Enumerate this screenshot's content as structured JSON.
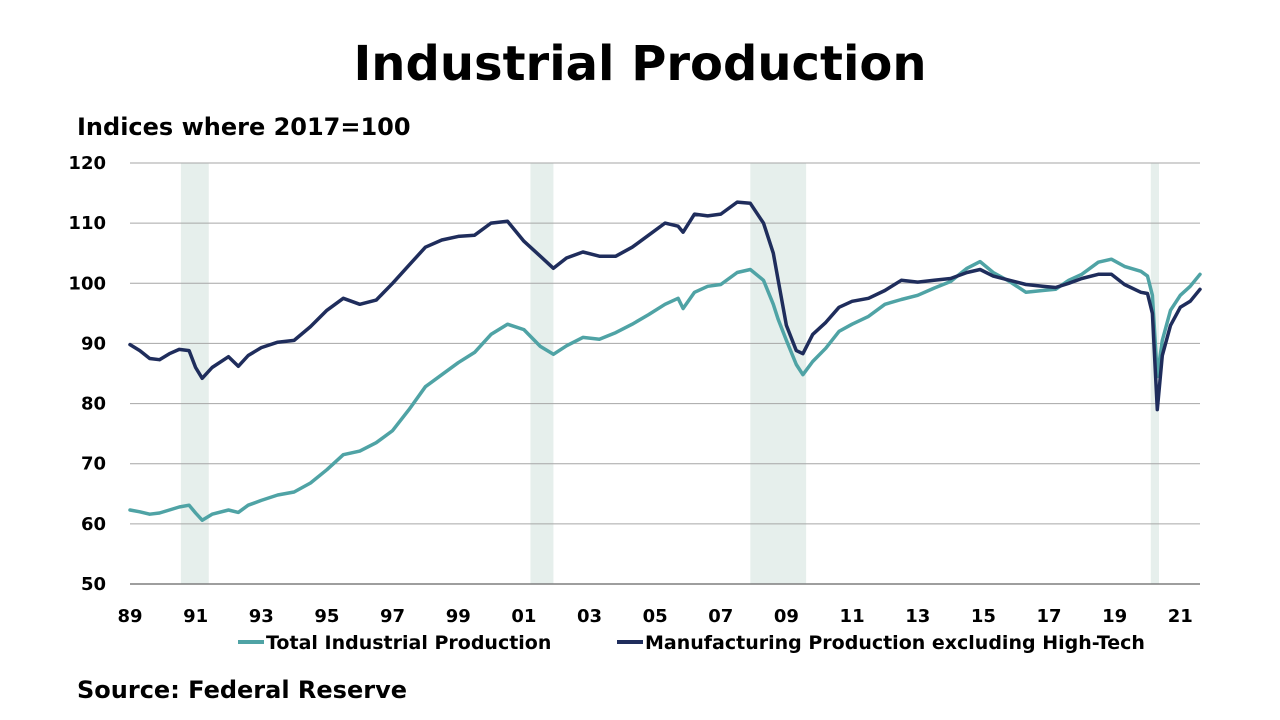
{
  "chart_data": {
    "type": "line",
    "title": "Industrial Production",
    "ylabel": "Indices where 2017=100",
    "source": "Source: Federal Reserve",
    "ylim": [
      50,
      120
    ],
    "xlim": [
      1989.0,
      2021.6
    ],
    "y_ticks": [
      50,
      60,
      70,
      80,
      90,
      100,
      110,
      120
    ],
    "x_ticks": [
      {
        "year": 1989,
        "label": "89"
      },
      {
        "year": 1991,
        "label": "91"
      },
      {
        "year": 1993,
        "label": "93"
      },
      {
        "year": 1995,
        "label": "95"
      },
      {
        "year": 1997,
        "label": "97"
      },
      {
        "year": 1999,
        "label": "99"
      },
      {
        "year": 2001,
        "label": "01"
      },
      {
        "year": 2003,
        "label": "03"
      },
      {
        "year": 2005,
        "label": "05"
      },
      {
        "year": 2007,
        "label": "07"
      },
      {
        "year": 2009,
        "label": "09"
      },
      {
        "year": 2011,
        "label": "11"
      },
      {
        "year": 2013,
        "label": "13"
      },
      {
        "year": 2015,
        "label": "15"
      },
      {
        "year": 2017,
        "label": "17"
      },
      {
        "year": 2019,
        "label": "19"
      },
      {
        "year": 2021,
        "label": "21"
      }
    ],
    "grid": true,
    "legend_position": "bottom",
    "recessions": [
      [
        1990.55,
        1991.4
      ],
      [
        2001.2,
        2001.9
      ],
      [
        2007.9,
        2009.6
      ],
      [
        2020.1,
        2020.35
      ]
    ],
    "colors": {
      "recession": "#e6efec",
      "grid": "#a6a6a6",
      "axis": "#7f7f7f"
    },
    "series": [
      {
        "name": "Total Industrial Production",
        "color": "#4fa3a5",
        "points": [
          [
            1989.0,
            62.3
          ],
          [
            1989.3,
            62.0
          ],
          [
            1989.6,
            61.6
          ],
          [
            1989.9,
            61.8
          ],
          [
            1990.2,
            62.3
          ],
          [
            1990.5,
            62.8
          ],
          [
            1990.8,
            63.1
          ],
          [
            1991.0,
            61.8
          ],
          [
            1991.2,
            60.6
          ],
          [
            1991.5,
            61.6
          ],
          [
            1992.0,
            62.3
          ],
          [
            1992.3,
            61.9
          ],
          [
            1992.6,
            63.1
          ],
          [
            1993.0,
            63.9
          ],
          [
            1993.5,
            64.8
          ],
          [
            1994.0,
            65.3
          ],
          [
            1994.5,
            66.8
          ],
          [
            1995.0,
            69.0
          ],
          [
            1995.5,
            71.5
          ],
          [
            1996.0,
            72.1
          ],
          [
            1996.5,
            73.5
          ],
          [
            1997.0,
            75.5
          ],
          [
            1997.5,
            79.0
          ],
          [
            1998.0,
            82.8
          ],
          [
            1998.5,
            84.8
          ],
          [
            1999.0,
            86.8
          ],
          [
            1999.5,
            88.5
          ],
          [
            2000.0,
            91.5
          ],
          [
            2000.5,
            93.2
          ],
          [
            2001.0,
            92.3
          ],
          [
            2001.5,
            89.5
          ],
          [
            2001.9,
            88.2
          ],
          [
            2002.3,
            89.6
          ],
          [
            2002.8,
            91.0
          ],
          [
            2003.3,
            90.7
          ],
          [
            2003.8,
            91.8
          ],
          [
            2004.3,
            93.2
          ],
          [
            2004.8,
            94.8
          ],
          [
            2005.3,
            96.5
          ],
          [
            2005.7,
            97.5
          ],
          [
            2005.85,
            95.8
          ],
          [
            2006.2,
            98.5
          ],
          [
            2006.6,
            99.5
          ],
          [
            2007.0,
            99.8
          ],
          [
            2007.5,
            101.8
          ],
          [
            2007.9,
            102.3
          ],
          [
            2008.3,
            100.5
          ],
          [
            2008.6,
            96.5
          ],
          [
            2008.75,
            94.0
          ],
          [
            2009.0,
            90.5
          ],
          [
            2009.3,
            86.5
          ],
          [
            2009.5,
            84.8
          ],
          [
            2009.8,
            87.0
          ],
          [
            2010.2,
            89.2
          ],
          [
            2010.6,
            92.0
          ],
          [
            2011.0,
            93.2
          ],
          [
            2011.5,
            94.5
          ],
          [
            2012.0,
            96.5
          ],
          [
            2012.5,
            97.3
          ],
          [
            2013.0,
            98.0
          ],
          [
            2013.5,
            99.2
          ],
          [
            2014.0,
            100.3
          ],
          [
            2014.5,
            102.5
          ],
          [
            2014.9,
            103.6
          ],
          [
            2015.3,
            101.8
          ],
          [
            2015.8,
            100.3
          ],
          [
            2016.3,
            98.5
          ],
          [
            2016.8,
            98.8
          ],
          [
            2017.2,
            99.0
          ],
          [
            2017.6,
            100.5
          ],
          [
            2018.0,
            101.5
          ],
          [
            2018.5,
            103.5
          ],
          [
            2018.9,
            104.0
          ],
          [
            2019.3,
            102.8
          ],
          [
            2019.8,
            102.0
          ],
          [
            2020.0,
            101.2
          ],
          [
            2020.15,
            98.0
          ],
          [
            2020.3,
            84.5
          ],
          [
            2020.45,
            90.5
          ],
          [
            2020.7,
            95.5
          ],
          [
            2021.0,
            98.0
          ],
          [
            2021.3,
            99.5
          ],
          [
            2021.6,
            101.5
          ]
        ]
      },
      {
        "name": "Manufacturing Production excluding High-Tech",
        "color": "#1f2d5c",
        "points": [
          [
            1989.0,
            89.8
          ],
          [
            1989.3,
            88.8
          ],
          [
            1989.6,
            87.5
          ],
          [
            1989.9,
            87.3
          ],
          [
            1990.2,
            88.3
          ],
          [
            1990.5,
            89.0
          ],
          [
            1990.8,
            88.8
          ],
          [
            1991.0,
            86.0
          ],
          [
            1991.2,
            84.2
          ],
          [
            1991.5,
            86.0
          ],
          [
            1992.0,
            87.8
          ],
          [
            1992.3,
            86.2
          ],
          [
            1992.6,
            88.0
          ],
          [
            1993.0,
            89.3
          ],
          [
            1993.5,
            90.2
          ],
          [
            1994.0,
            90.5
          ],
          [
            1994.5,
            92.8
          ],
          [
            1995.0,
            95.5
          ],
          [
            1995.5,
            97.5
          ],
          [
            1996.0,
            96.5
          ],
          [
            1996.5,
            97.2
          ],
          [
            1997.0,
            100.0
          ],
          [
            1997.5,
            103.0
          ],
          [
            1998.0,
            106.0
          ],
          [
            1998.5,
            107.2
          ],
          [
            1999.0,
            107.8
          ],
          [
            1999.5,
            108.0
          ],
          [
            2000.0,
            110.0
          ],
          [
            2000.5,
            110.3
          ],
          [
            2001.0,
            107.0
          ],
          [
            2001.5,
            104.5
          ],
          [
            2001.9,
            102.5
          ],
          [
            2002.3,
            104.2
          ],
          [
            2002.8,
            105.2
          ],
          [
            2003.3,
            104.5
          ],
          [
            2003.8,
            104.5
          ],
          [
            2004.3,
            106.0
          ],
          [
            2004.8,
            108.0
          ],
          [
            2005.3,
            110.0
          ],
          [
            2005.7,
            109.5
          ],
          [
            2005.85,
            108.5
          ],
          [
            2006.2,
            111.5
          ],
          [
            2006.6,
            111.2
          ],
          [
            2007.0,
            111.5
          ],
          [
            2007.5,
            113.5
          ],
          [
            2007.9,
            113.3
          ],
          [
            2008.3,
            110.0
          ],
          [
            2008.6,
            105.0
          ],
          [
            2008.75,
            100.5
          ],
          [
            2009.0,
            93.0
          ],
          [
            2009.3,
            88.8
          ],
          [
            2009.5,
            88.3
          ],
          [
            2009.8,
            91.5
          ],
          [
            2010.2,
            93.5
          ],
          [
            2010.6,
            96.0
          ],
          [
            2011.0,
            97.0
          ],
          [
            2011.5,
            97.5
          ],
          [
            2012.0,
            98.8
          ],
          [
            2012.5,
            100.5
          ],
          [
            2013.0,
            100.2
          ],
          [
            2013.5,
            100.5
          ],
          [
            2014.0,
            100.8
          ],
          [
            2014.5,
            101.8
          ],
          [
            2014.9,
            102.3
          ],
          [
            2015.3,
            101.2
          ],
          [
            2015.8,
            100.5
          ],
          [
            2016.3,
            99.8
          ],
          [
            2016.8,
            99.5
          ],
          [
            2017.2,
            99.3
          ],
          [
            2017.6,
            100.0
          ],
          [
            2018.0,
            100.8
          ],
          [
            2018.5,
            101.5
          ],
          [
            2018.9,
            101.5
          ],
          [
            2019.3,
            99.8
          ],
          [
            2019.8,
            98.5
          ],
          [
            2020.0,
            98.3
          ],
          [
            2020.15,
            95.0
          ],
          [
            2020.3,
            79.0
          ],
          [
            2020.45,
            88.0
          ],
          [
            2020.7,
            93.0
          ],
          [
            2021.0,
            96.0
          ],
          [
            2021.3,
            97.0
          ],
          [
            2021.6,
            99.0
          ]
        ]
      }
    ]
  }
}
